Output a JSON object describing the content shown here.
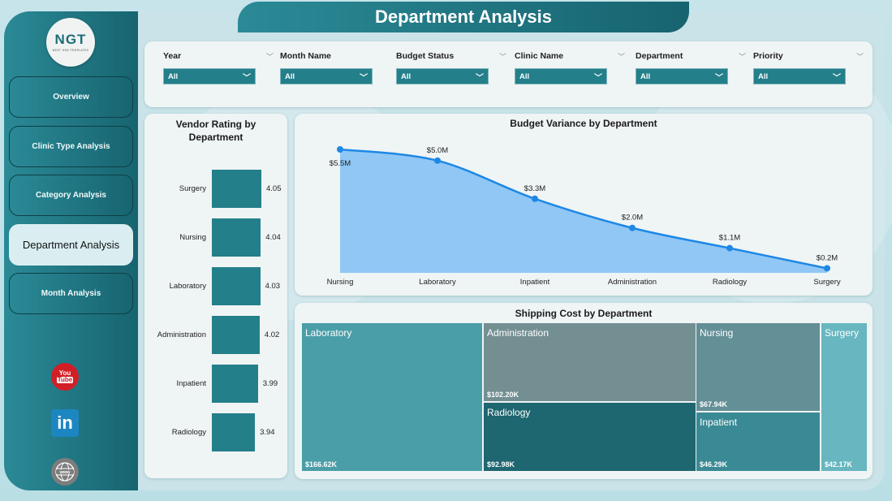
{
  "header": {
    "title": "Department Analysis"
  },
  "logo": {
    "mark": "NGT",
    "subtitle": "NEXT GEN TEMPLATES"
  },
  "sidebar": {
    "items": [
      {
        "label": "Overview",
        "active": false
      },
      {
        "label": "Clinic Type Analysis",
        "active": false
      },
      {
        "label": "Category Analysis",
        "active": false
      },
      {
        "label": "Department Analysis",
        "active": true
      },
      {
        "label": "Month Analysis",
        "active": false
      }
    ],
    "social": [
      {
        "name": "youtube-icon",
        "top": "You",
        "bottom": "Tube"
      },
      {
        "name": "linkedin-icon",
        "text": "in"
      },
      {
        "name": "website-icon",
        "text": "www"
      }
    ]
  },
  "filters": [
    {
      "label": "Year",
      "value": "All"
    },
    {
      "label": "Month Name",
      "value": "All"
    },
    {
      "label": "Budget Status",
      "value": "All"
    },
    {
      "label": "Clinic Name",
      "value": "All"
    },
    {
      "label": "Department",
      "value": "All"
    },
    {
      "label": "Priority",
      "value": "All"
    }
  ],
  "chart_data": [
    {
      "type": "bar",
      "orientation": "horizontal",
      "title": "Vendor Rating by Department",
      "categories": [
        "Surgery",
        "Nursing",
        "Laboratory",
        "Administration",
        "Inpatient",
        "Radiology"
      ],
      "values": [
        4.05,
        4.04,
        4.03,
        4.02,
        3.99,
        3.94
      ],
      "value_labels": [
        "4.05",
        "4.04",
        "4.03",
        "4.02",
        "3.99",
        "3.94"
      ],
      "color": "#237f8a"
    },
    {
      "type": "area",
      "title": "Budget Variance by Department",
      "categories": [
        "Nursing",
        "Laboratory",
        "Inpatient",
        "Administration",
        "Radiology",
        "Surgery"
      ],
      "values": [
        5.5,
        5.0,
        3.3,
        2.0,
        1.1,
        0.2
      ],
      "value_labels": [
        "$5.5M",
        "$5.0M",
        "$3.3M",
        "$2.0M",
        "$1.1M",
        "$0.2M"
      ],
      "unit": "$M",
      "line_color": "#1e88e5",
      "fill_color": "#90c7f5"
    },
    {
      "type": "treemap",
      "title": "Shipping Cost by Department",
      "categories": [
        "Laboratory",
        "Administration",
        "Radiology",
        "Nursing",
        "Inpatient",
        "Surgery"
      ],
      "values": [
        166.62,
        102.2,
        92.98,
        67.94,
        46.29,
        42.17
      ],
      "value_labels": [
        "$166.62K",
        "$102.20K",
        "$92.98K",
        "$67.94K",
        "$46.29K",
        "$42.17K"
      ],
      "unit": "$K",
      "colors": [
        "#4a9ea8",
        "#738f92",
        "#1e6670",
        "#638f96",
        "#3a8a95",
        "#67b6c0"
      ]
    }
  ]
}
